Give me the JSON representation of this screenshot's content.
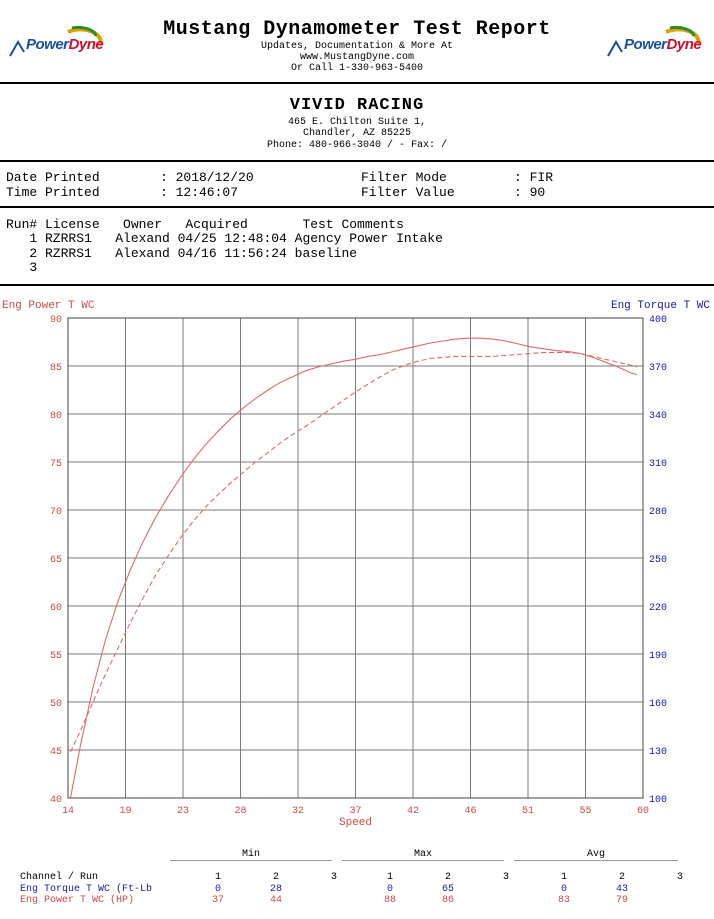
{
  "header": {
    "title": "Mustang Dynamometer Test Report",
    "line1": "Updates, Documentation & More At",
    "line2": "www.MustangDyne.com",
    "line3": "Or Call 1-330-963-5400",
    "logo_text_a": "Power",
    "logo_text_b": "Dyne"
  },
  "dealer": {
    "name": "VIVID RACING",
    "address1": "465 E. Chilton Suite 1,",
    "address2": "Chandler, AZ  85225",
    "phone": "Phone: 480-966-3040 /  - Fax:  /"
  },
  "info": {
    "date_label": "Date Printed",
    "date_value": ": 2018/12/20",
    "time_label": "Time Printed",
    "time_value": ": 12:46:07",
    "filter_mode_label": "Filter Mode",
    "filter_mode_value": ": FIR",
    "filter_value_label": "Filter Value",
    "filter_value_value": ": 90"
  },
  "runs": {
    "header": "Run# License   Owner   Acquired       Test Comments",
    "rows": [
      "   1 RZRRS1   Alexand 04/25 12:48:04 Agency Power Intake",
      "   2 RZRRS1   Alexand 04/16 11:56:24 baseline",
      "   3"
    ]
  },
  "chart_data": {
    "type": "line",
    "left_axis_label": "Eng Power T WC",
    "right_axis_label": "Eng Torque T WC",
    "xlabel": "Speed",
    "xlim": [
      14,
      60
    ],
    "x_ticks": [
      "14",
      "19",
      "23",
      "28",
      "32",
      "37",
      "42",
      "46",
      "51",
      "55",
      "60"
    ],
    "ylim_left": [
      40,
      90
    ],
    "y_ticks_left": [
      "90",
      "85",
      "80",
      "75",
      "70",
      "65",
      "60",
      "55",
      "50",
      "45",
      "40"
    ],
    "ylim_right": [
      100,
      400
    ],
    "y_ticks_right": [
      "400",
      "370",
      "340",
      "310",
      "280",
      "250",
      "220",
      "190",
      "160",
      "130",
      "100"
    ],
    "grid": true,
    "series": [
      {
        "name": "1",
        "style": "solid",
        "color": "#e06a6a",
        "x": [
          14.2,
          15,
          16,
          17,
          18,
          19,
          20,
          21,
          22,
          23,
          24,
          25,
          26,
          27,
          28,
          29,
          30,
          31,
          32,
          33,
          34,
          35,
          36,
          37,
          38,
          39,
          40,
          41,
          42,
          43,
          44,
          45,
          46,
          47,
          48,
          49,
          50,
          51,
          52,
          53,
          54,
          55,
          56,
          57,
          58,
          59,
          59.5
        ],
        "y": [
          40,
          45.5,
          51.5,
          56.5,
          60.5,
          63.8,
          66.7,
          69.2,
          71.4,
          73.4,
          75.2,
          76.8,
          78.2,
          79.5,
          80.6,
          81.6,
          82.5,
          83.3,
          83.9,
          84.5,
          84.9,
          85.2,
          85.5,
          85.7,
          86.0,
          86.2,
          86.5,
          86.8,
          87.1,
          87.4,
          87.6,
          87.8,
          87.9,
          87.9,
          87.8,
          87.6,
          87.3,
          87.0,
          86.8,
          86.6,
          86.5,
          86.3,
          85.9,
          85.4,
          84.9,
          84.3,
          84.1
        ]
      },
      {
        "name": "2",
        "style": "dashed",
        "color": "#e06a6a",
        "x": [
          14.2,
          15,
          16,
          17,
          18,
          19,
          20,
          21,
          22,
          23,
          24,
          25,
          26,
          27,
          28,
          29,
          30,
          31,
          32,
          33,
          34,
          35,
          36,
          37,
          38,
          39,
          40,
          41,
          42,
          43,
          44,
          45,
          46,
          47,
          48,
          49,
          50,
          51,
          52,
          53,
          54,
          55,
          56,
          57,
          58,
          59,
          59.5
        ],
        "y": [
          44.8,
          47.0,
          50.0,
          52.9,
          55.6,
          58.3,
          60.8,
          63.2,
          65.2,
          67.1,
          68.8,
          70.3,
          71.6,
          72.8,
          73.9,
          75.0,
          76.0,
          77.0,
          77.9,
          78.7,
          79.6,
          80.5,
          81.4,
          82.3,
          83.1,
          83.9,
          84.6,
          85.1,
          85.5,
          85.8,
          85.9,
          86.0,
          86.0,
          86.0,
          86.0,
          86.1,
          86.2,
          86.3,
          86.4,
          86.4,
          86.4,
          86.3,
          86.0,
          85.7,
          85.4,
          85.1,
          84.9
        ]
      }
    ]
  },
  "summary": {
    "group_min": "Min",
    "group_max": "Max",
    "group_avg": "Avg",
    "header_label": "Channel / Run",
    "run_numbers": [
      "1",
      "2",
      "3"
    ],
    "rows": [
      {
        "label": "Eng Torque T WC (Ft-Lb",
        "color": "#1a1aa0",
        "min": [
          "0",
          "28",
          ""
        ],
        "max": [
          "0",
          "65",
          ""
        ],
        "avg": [
          "0",
          "43",
          ""
        ]
      },
      {
        "label": "Eng Power T WC (HP)",
        "color": "#d04848",
        "min": [
          "37",
          "44",
          ""
        ],
        "max": [
          "88",
          "86",
          ""
        ],
        "avg": [
          "83",
          "79",
          ""
        ]
      }
    ]
  },
  "colors": {
    "power_axis": "#d04848",
    "torque_axis": "#1a1aa0",
    "grid": "#7a7a7a",
    "curve": "#e06a6a"
  }
}
